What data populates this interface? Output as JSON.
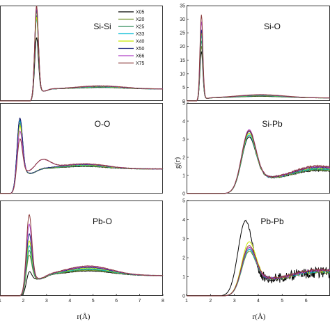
{
  "chart_data": {
    "type": "line",
    "legend": {
      "placement": "top-right of Si-Si panel",
      "entries": [
        {
          "name": "X05",
          "color": "#000000"
        },
        {
          "name": "X20",
          "color": "#6b8e23"
        },
        {
          "name": "X25",
          "color": "#2e8b57"
        },
        {
          "name": "X33",
          "color": "#00bcd4"
        },
        {
          "name": "X40",
          "color": "#c8e600"
        },
        {
          "name": "X50",
          "color": "#1a237e"
        },
        {
          "name": "X66",
          "color": "#b040c8"
        },
        {
          "name": "X75",
          "color": "#8b3a3a"
        }
      ]
    },
    "left_x_axis": {
      "label": "r(Å)",
      "ticks": [
        "1",
        "2",
        "3",
        "4",
        "5",
        "6",
        "7",
        "8"
      ],
      "xlim": [
        1,
        8
      ]
    },
    "right_x_axis": {
      "label": "r(Å)",
      "ticks": [
        "1",
        "2",
        "3",
        "4",
        "5",
        "6"
      ],
      "xlim": [
        1,
        7
      ]
    },
    "right_y_label": "g(r)",
    "panels": [
      {
        "title": "Si-Si",
        "column": "left",
        "row": 0,
        "y_ticks": [],
        "ylim": [
          0,
          6
        ],
        "peaks": [
          {
            "name": "X05",
            "r": 2.57,
            "height": 3.9
          },
          {
            "name": "X20",
            "r": 2.57,
            "height": 5.6
          },
          {
            "name": "X25",
            "r": 2.57,
            "height": 5.3
          },
          {
            "name": "X33",
            "r": 2.57,
            "height": 5.1
          },
          {
            "name": "X40",
            "r": 2.57,
            "height": 5.2
          },
          {
            "name": "X50",
            "r": 2.57,
            "height": 5.7
          },
          {
            "name": "X66",
            "r": 2.57,
            "height": 5.8
          },
          {
            "name": "X75",
            "r": 2.57,
            "height": 5.9
          }
        ],
        "secondary": {
          "r": 1.95,
          "height": 0.45
        },
        "broad_peak": {
          "r": 5.3,
          "height": 0.9
        },
        "baseline": 0.75
      },
      {
        "title": "Si-O",
        "column": "right",
        "row": 0,
        "y_ticks": [
          "0",
          "5",
          "10",
          "15",
          "20",
          "25",
          "30",
          "35"
        ],
        "ylim": [
          0,
          35
        ],
        "peaks": [
          {
            "name": "X05",
            "r": 1.62,
            "height": 18
          },
          {
            "name": "X20",
            "r": 1.62,
            "height": 20
          },
          {
            "name": "X25",
            "r": 1.62,
            "height": 22
          },
          {
            "name": "X33",
            "r": 1.62,
            "height": 24
          },
          {
            "name": "X40",
            "r": 1.62,
            "height": 25
          },
          {
            "name": "X50",
            "r": 1.62,
            "height": 26
          },
          {
            "name": "X66",
            "r": 1.62,
            "height": 29
          },
          {
            "name": "X75",
            "r": 1.62,
            "height": 31.5
          }
        ],
        "broad_peak": {
          "r": 4.1,
          "height": 2
        },
        "baseline": 1.1
      },
      {
        "title": "O-O",
        "column": "left",
        "row": 1,
        "y_ticks": [],
        "ylim": [
          0,
          3.5
        ],
        "peaks": [
          {
            "name": "X05",
            "r": 1.85,
            "height": 2.8
          },
          {
            "name": "X20",
            "r": 1.85,
            "height": 2.6
          },
          {
            "name": "X25",
            "r": 1.85,
            "height": 2.7
          },
          {
            "name": "X33",
            "r": 1.85,
            "height": 2.7
          },
          {
            "name": "X40",
            "r": 1.85,
            "height": 2.5
          },
          {
            "name": "X50",
            "r": 1.85,
            "height": 2.8
          },
          {
            "name": "X66",
            "r": 1.85,
            "height": 2.3
          },
          {
            "name": "X75",
            "r": 1.85,
            "height": 2.0
          }
        ],
        "broad_peak": {
          "r": 4.6,
          "height": 1.1
        },
        "baseline": 0.95
      },
      {
        "title": "Si-Pb",
        "column": "right",
        "row": 1,
        "y_ticks": [
          "0",
          "1",
          "2",
          "3",
          "4",
          "5"
        ],
        "ylim": [
          0,
          5
        ],
        "peaks": [
          {
            "name": "X05",
            "r": 3.6,
            "height": 3.0
          },
          {
            "name": "X20",
            "r": 3.6,
            "height": 3.1
          },
          {
            "name": "X25",
            "r": 3.6,
            "height": 3.2
          },
          {
            "name": "X33",
            "r": 3.6,
            "height": 3.1
          },
          {
            "name": "X40",
            "r": 3.6,
            "height": 3.2
          },
          {
            "name": "X50",
            "r": 3.6,
            "height": 3.3
          },
          {
            "name": "X66",
            "r": 3.6,
            "height": 3.4
          },
          {
            "name": "X75",
            "r": 3.6,
            "height": 3.35
          }
        ],
        "broad_peak": {
          "r": 6.5,
          "height": 1.4
        },
        "baseline": 1.05
      },
      {
        "title": "Pb-O",
        "column": "left",
        "row": 2,
        "y_ticks": [],
        "ylim": [
          0,
          4
        ],
        "peaks": [
          {
            "name": "X05",
            "r": 2.25,
            "height": 0.9
          },
          {
            "name": "X20",
            "r": 2.25,
            "height": 1.6
          },
          {
            "name": "X25",
            "r": 2.25,
            "height": 1.8
          },
          {
            "name": "X33",
            "r": 2.25,
            "height": 2.0
          },
          {
            "name": "X40",
            "r": 2.25,
            "height": 2.2
          },
          {
            "name": "X50",
            "r": 2.25,
            "height": 2.5
          },
          {
            "name": "X66",
            "r": 2.25,
            "height": 2.9
          },
          {
            "name": "X75",
            "r": 2.25,
            "height": 3.3
          }
        ],
        "broad_peak": {
          "r": 4.8,
          "height": 1.15
        },
        "baseline": 0.85
      },
      {
        "title": "Pb-Pb",
        "column": "right",
        "row": 2,
        "y_ticks": [
          "0",
          "1",
          "2",
          "3",
          "4",
          "5"
        ],
        "ylim": [
          0,
          5
        ],
        "peaks": [
          {
            "name": "X05",
            "r": 3.45,
            "height": 3.8
          },
          {
            "name": "X20",
            "r": 3.6,
            "height": 2.2
          },
          {
            "name": "X25",
            "r": 3.6,
            "height": 2.3
          },
          {
            "name": "X33",
            "r": 3.6,
            "height": 2.3
          },
          {
            "name": "X40",
            "r": 3.6,
            "height": 2.7
          },
          {
            "name": "X50",
            "r": 3.6,
            "height": 2.4
          },
          {
            "name": "X66",
            "r": 3.6,
            "height": 2.4
          },
          {
            "name": "X75",
            "r": 3.6,
            "height": 2.5
          }
        ],
        "broad_peak": {
          "r": 6.6,
          "height": 1.3
        },
        "baseline": 1.1
      }
    ]
  }
}
